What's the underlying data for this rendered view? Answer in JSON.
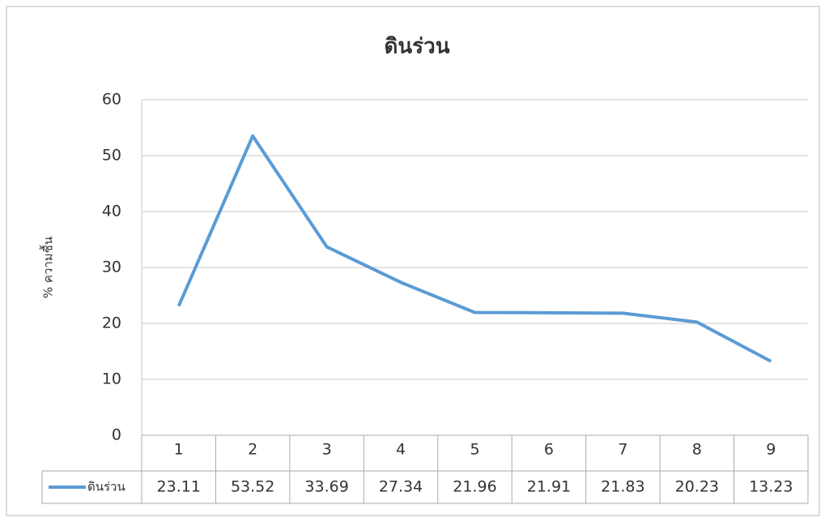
{
  "chart_data": {
    "type": "line",
    "title": "ดินร่วน",
    "y_label": "% ความชื้น",
    "categories": [
      "1",
      "2",
      "3",
      "4",
      "5",
      "6",
      "7",
      "8",
      "9"
    ],
    "series": [
      {
        "name": "ดินร่วน",
        "color": "#5b9bd5",
        "values": [
          23.11,
          53.52,
          33.69,
          27.34,
          21.96,
          21.91,
          21.83,
          20.23,
          13.23
        ]
      }
    ],
    "ylim": [
      0,
      60
    ],
    "yticks": [
      0,
      10,
      20,
      30,
      40,
      50,
      60
    ],
    "grid": true,
    "data_table": true
  }
}
